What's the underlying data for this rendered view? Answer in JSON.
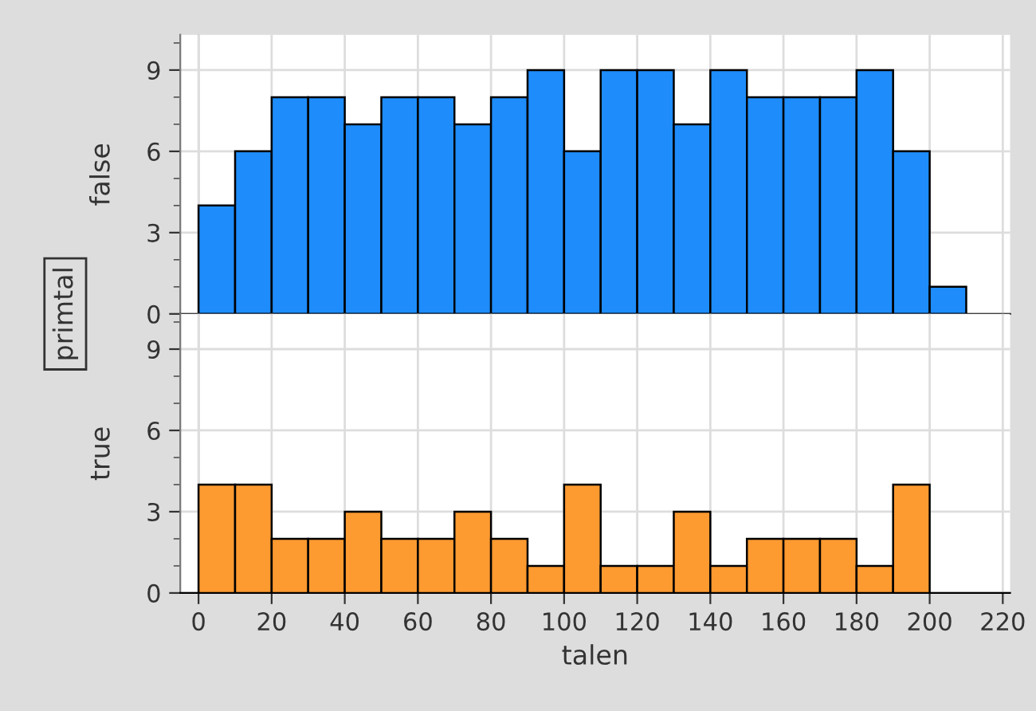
{
  "chart_data": [
    {
      "type": "histogram",
      "ylabel": "false",
      "annotations": [
        "primtal"
      ],
      "bins": [
        0,
        10,
        20,
        30,
        40,
        50,
        60,
        70,
        80,
        90,
        100,
        110,
        120,
        130,
        140,
        150,
        160,
        170,
        180,
        190,
        200,
        210
      ],
      "values": [
        4,
        6,
        8,
        8,
        7,
        8,
        8,
        7,
        8,
        9,
        6,
        9,
        9,
        7,
        9,
        8,
        8,
        8,
        9,
        6,
        1
      ],
      "color": "#1e8cfa",
      "xlim": [
        -5,
        222
      ],
      "xticks": [
        0,
        20,
        40,
        60,
        80,
        100,
        120,
        140,
        160,
        180,
        200,
        220
      ],
      "ylim": [
        0,
        10.3
      ],
      "yticks": [
        0,
        3,
        6,
        9
      ],
      "grid": true,
      "tick_labels": "y"
    },
    {
      "type": "histogram",
      "ylabel": "true",
      "xlabel": "talen",
      "bins": [
        0,
        10,
        20,
        30,
        40,
        50,
        60,
        70,
        80,
        90,
        100,
        110,
        120,
        130,
        140,
        150,
        160,
        170,
        180,
        190,
        200
      ],
      "values": [
        4,
        4,
        2,
        2,
        3,
        2,
        2,
        3,
        2,
        1,
        4,
        1,
        1,
        3,
        1,
        2,
        2,
        2,
        1,
        4
      ],
      "color": "#fd9a30",
      "xlim": [
        -5,
        222
      ],
      "xticks": [
        0,
        20,
        40,
        60,
        80,
        100,
        120,
        140,
        160,
        180,
        200,
        220
      ],
      "ylim": [
        0,
        10.3
      ],
      "yticks": [
        0,
        3,
        6,
        9
      ],
      "grid": true
    }
  ]
}
